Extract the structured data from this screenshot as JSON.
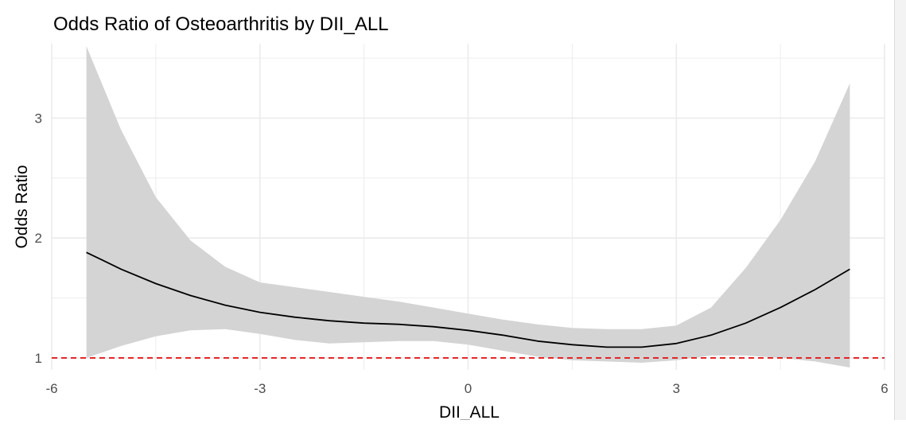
{
  "chart_data": {
    "type": "line",
    "title": "Odds Ratio of Osteoarthritis by DII_ALL",
    "xlabel": "DII_ALL",
    "ylabel": "Odds Ratio",
    "xlim": [
      -6,
      6
    ],
    "ylim": [
      0.9,
      3.62
    ],
    "x_ticks": [
      -6,
      -3,
      0,
      3,
      6
    ],
    "x_tick_labels": [
      "-6",
      "-3",
      "0",
      "3",
      "6"
    ],
    "y_ticks": [
      1,
      2,
      3
    ],
    "y_tick_labels": [
      "1",
      "2",
      "3"
    ],
    "grid": true,
    "legend": "none",
    "reference_line": {
      "y": 1,
      "color": "#e41a1c",
      "style": "dashed"
    },
    "series": [
      {
        "x": [
          -5.5,
          -5.0,
          -4.5,
          -4.0,
          -3.5,
          -3.0,
          -2.5,
          -2.0,
          -1.5,
          -1.0,
          -0.5,
          0.0,
          0.5,
          1.0,
          1.5,
          2.0,
          2.5,
          3.0,
          3.5,
          4.0,
          4.5,
          5.0,
          5.5
        ],
        "y": [
          1.88,
          1.74,
          1.62,
          1.52,
          1.44,
          1.38,
          1.34,
          1.31,
          1.29,
          1.28,
          1.26,
          1.23,
          1.19,
          1.14,
          1.11,
          1.09,
          1.09,
          1.12,
          1.19,
          1.29,
          1.42,
          1.57,
          1.74
        ],
        "lower": [
          1.0,
          1.1,
          1.18,
          1.23,
          1.24,
          1.2,
          1.15,
          1.12,
          1.13,
          1.14,
          1.14,
          1.11,
          1.06,
          1.01,
          0.98,
          0.97,
          0.96,
          0.98,
          1.02,
          1.02,
          1.0,
          0.97,
          0.92
        ],
        "upper": [
          3.6,
          2.9,
          2.34,
          1.98,
          1.76,
          1.63,
          1.59,
          1.55,
          1.51,
          1.47,
          1.42,
          1.37,
          1.32,
          1.28,
          1.25,
          1.24,
          1.24,
          1.27,
          1.42,
          1.75,
          2.15,
          2.64,
          3.29
        ]
      }
    ],
    "colors": {
      "line": "#000000",
      "ribbon": "#d4d4d4",
      "grid": "#ebebeb",
      "reference": "#e41a1c"
    }
  }
}
